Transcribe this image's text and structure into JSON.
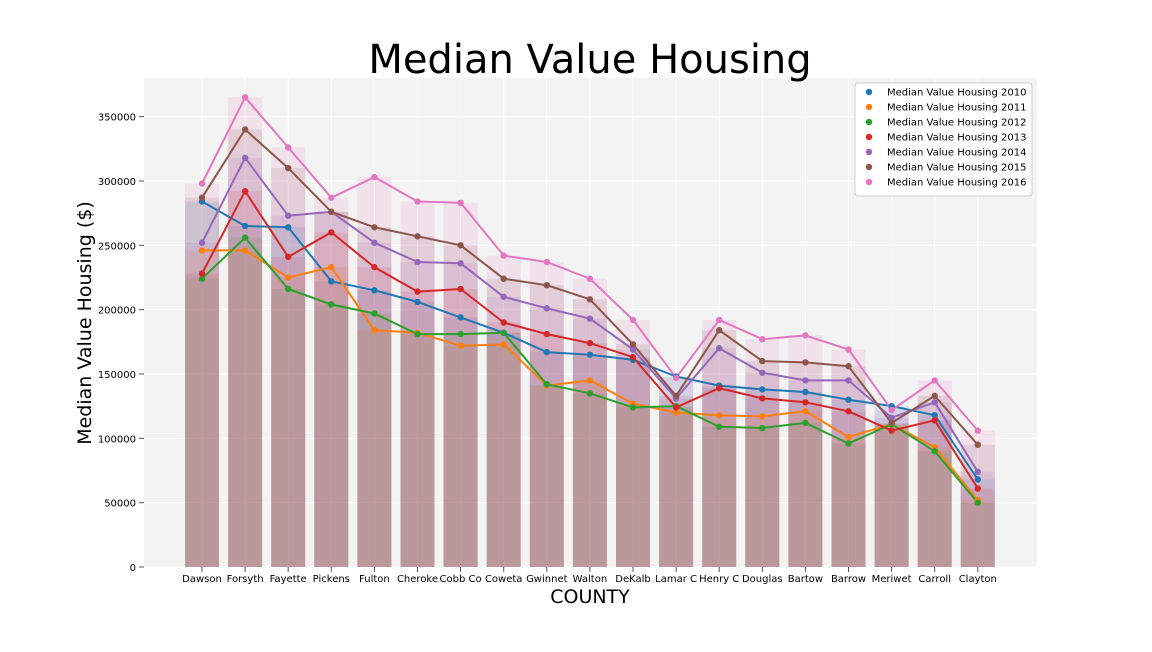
{
  "chart_data": {
    "type": "bar",
    "title": "Median Value Housing",
    "xlabel": "COUNTY",
    "ylabel": "Median Value Housing ($)",
    "ylim": [
      0,
      380000
    ],
    "yticks": [
      0,
      50000,
      100000,
      150000,
      200000,
      250000,
      300000,
      350000
    ],
    "ytick_labels": [
      "0",
      "50000",
      "100000",
      "150000",
      "200000",
      "250000",
      "300000",
      "350000"
    ],
    "grid": true,
    "legend_position": "top-right",
    "categories": [
      "Dawson",
      "Forsyth",
      "Fayette",
      "Pickens",
      "Fulton",
      "Cheroke",
      "Cobb Co",
      "Coweta",
      "Gwinnet",
      "Walton",
      "DeKalb",
      "Lamar C",
      "Henry C",
      "Douglas",
      "Bartow",
      "Barrow",
      "Meriwet",
      "Carroll",
      "Clayton"
    ],
    "series": [
      {
        "name": "Median Value Housing 2010",
        "color": "#1f77b4",
        "values": [
          284000,
          265000,
          264000,
          222000,
          215000,
          206000,
          194000,
          182000,
          167000,
          165000,
          161000,
          148000,
          141000,
          138000,
          136000,
          130000,
          125000,
          118000,
          68000
        ]
      },
      {
        "name": "Median Value Housing 2011",
        "color": "#ff7f0e",
        "values": [
          246000,
          246000,
          225000,
          233000,
          184000,
          182000,
          172000,
          173000,
          141000,
          145000,
          127000,
          120000,
          118000,
          117000,
          121000,
          101000,
          111000,
          93000,
          52000
        ]
      },
      {
        "name": "Median Value Housing 2012",
        "color": "#2ca02c",
        "values": [
          224000,
          256000,
          216000,
          204000,
          197000,
          181000,
          181000,
          182000,
          142000,
          135000,
          124000,
          125000,
          109000,
          108000,
          112000,
          96000,
          111000,
          90000,
          50000
        ]
      },
      {
        "name": "Median Value Housing 2013",
        "color": "#d62728",
        "values": [
          228000,
          292000,
          241000,
          260000,
          233000,
          214000,
          216000,
          190000,
          181000,
          174000,
          163000,
          124000,
          139000,
          131000,
          128000,
          121000,
          106000,
          114000,
          61000
        ]
      },
      {
        "name": "Median Value Housing 2014",
        "color": "#9467bd",
        "values": [
          252000,
          318000,
          273000,
          276000,
          252000,
          237000,
          236000,
          210000,
          201000,
          193000,
          169000,
          131000,
          170000,
          151000,
          145000,
          145000,
          116000,
          128000,
          74000
        ]
      },
      {
        "name": "Median Value Housing 2015",
        "color": "#8c564b",
        "values": [
          287000,
          340000,
          310000,
          276000,
          264000,
          257000,
          250000,
          224000,
          219000,
          208000,
          173000,
          133000,
          184000,
          160000,
          159000,
          156000,
          112000,
          133000,
          95000
        ]
      },
      {
        "name": "Median Value Housing 2016",
        "color": "#e377c2",
        "values": [
          298000,
          365000,
          326000,
          287000,
          303000,
          284000,
          283000,
          242000,
          237000,
          224000,
          192000,
          147000,
          192000,
          177000,
          180000,
          169000,
          122000,
          145000,
          106000
        ]
      }
    ]
  }
}
